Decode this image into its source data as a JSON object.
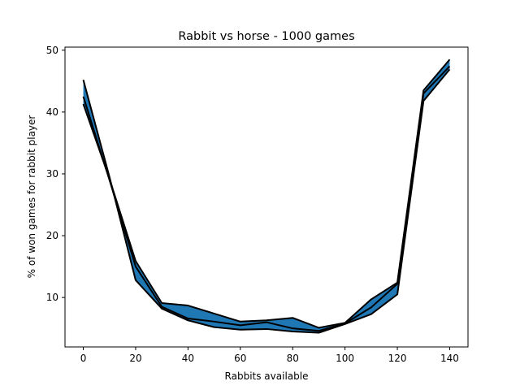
{
  "chart_data": {
    "type": "area",
    "title": "Rabbit vs horse  - 1000 games",
    "xlabel": "Rabbits available",
    "ylabel": "% of won games for rabbit player",
    "xlim": [
      -7,
      147
    ],
    "ylim": [
      2,
      50.5
    ],
    "xticks": [
      0,
      20,
      40,
      60,
      80,
      100,
      120,
      140
    ],
    "yticks": [
      10,
      20,
      30,
      40,
      50
    ],
    "grid": false,
    "legend": "none",
    "fill_color": "#1f77b4",
    "line_color": "#000000",
    "x": [
      0,
      10,
      20,
      30,
      40,
      50,
      60,
      70,
      80,
      90,
      100,
      110,
      120,
      130,
      140
    ],
    "series": [
      {
        "values": [
          45.2,
          29.5,
          12.8,
          8.2,
          6.3,
          5.2,
          4.8,
          4.9,
          4.5,
          4.3,
          5.7,
          7.3,
          10.5,
          41.8,
          46.9
        ]
      },
      {
        "values": [
          42.5,
          29.0,
          15.0,
          8.5,
          6.6,
          6.1,
          5.5,
          6.0,
          5.0,
          4.6,
          5.8,
          8.4,
          12.2,
          43.0,
          47.4
        ]
      },
      {
        "values": [
          41.3,
          29.2,
          15.9,
          9.1,
          8.7,
          7.4,
          6.1,
          6.3,
          6.7,
          5.1,
          5.9,
          9.7,
          12.4,
          43.5,
          48.5
        ]
      }
    ]
  }
}
